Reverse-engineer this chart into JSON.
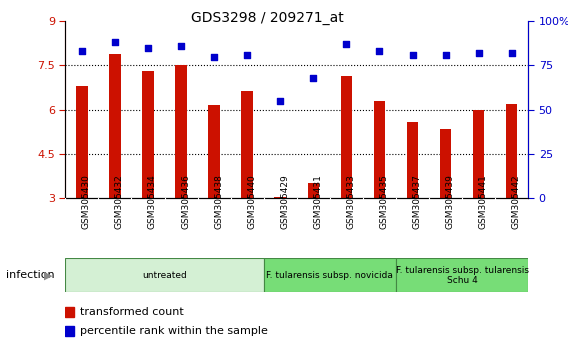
{
  "title": "GDS3298 / 209271_at",
  "samples": [
    "GSM305430",
    "GSM305432",
    "GSM305434",
    "GSM305436",
    "GSM305438",
    "GSM305440",
    "GSM305429",
    "GSM305431",
    "GSM305433",
    "GSM305435",
    "GSM305437",
    "GSM305439",
    "GSM305441",
    "GSM305442"
  ],
  "bar_values": [
    6.8,
    7.9,
    7.3,
    7.5,
    6.15,
    6.65,
    3.05,
    3.5,
    7.15,
    6.3,
    5.6,
    5.35,
    6.0,
    6.2
  ],
  "dot_values": [
    83,
    88,
    85,
    86,
    80,
    81,
    55,
    68,
    87,
    83,
    81,
    81,
    82,
    82
  ],
  "bar_color": "#cc1100",
  "dot_color": "#0000cc",
  "ylim_left": [
    3,
    9
  ],
  "ylim_right": [
    0,
    100
  ],
  "yticks_left": [
    3,
    4.5,
    6,
    7.5,
    9
  ],
  "ytick_labels_left": [
    "3",
    "4.5",
    "6",
    "7.5",
    "9"
  ],
  "yticks_right": [
    0,
    25,
    50,
    75,
    100
  ],
  "ytick_labels_right": [
    "0",
    "25",
    "50",
    "75",
    "100%"
  ],
  "groups": [
    {
      "label": "untreated",
      "start": 0,
      "end": 6,
      "color": "#d4f0d4"
    },
    {
      "label": "F. tularensis subsp. novicida",
      "start": 6,
      "end": 10,
      "color": "#77dd77"
    },
    {
      "label": "F. tularensis subsp. tularensis\nSchu 4",
      "start": 10,
      "end": 14,
      "color": "#77dd77"
    }
  ],
  "infection_label": "infection",
  "legend_bar_label": "transformed count",
  "legend_dot_label": "percentile rank within the sample",
  "bg_color": "#ffffff",
  "tick_bg_color": "#cccccc",
  "bar_width": 0.35
}
